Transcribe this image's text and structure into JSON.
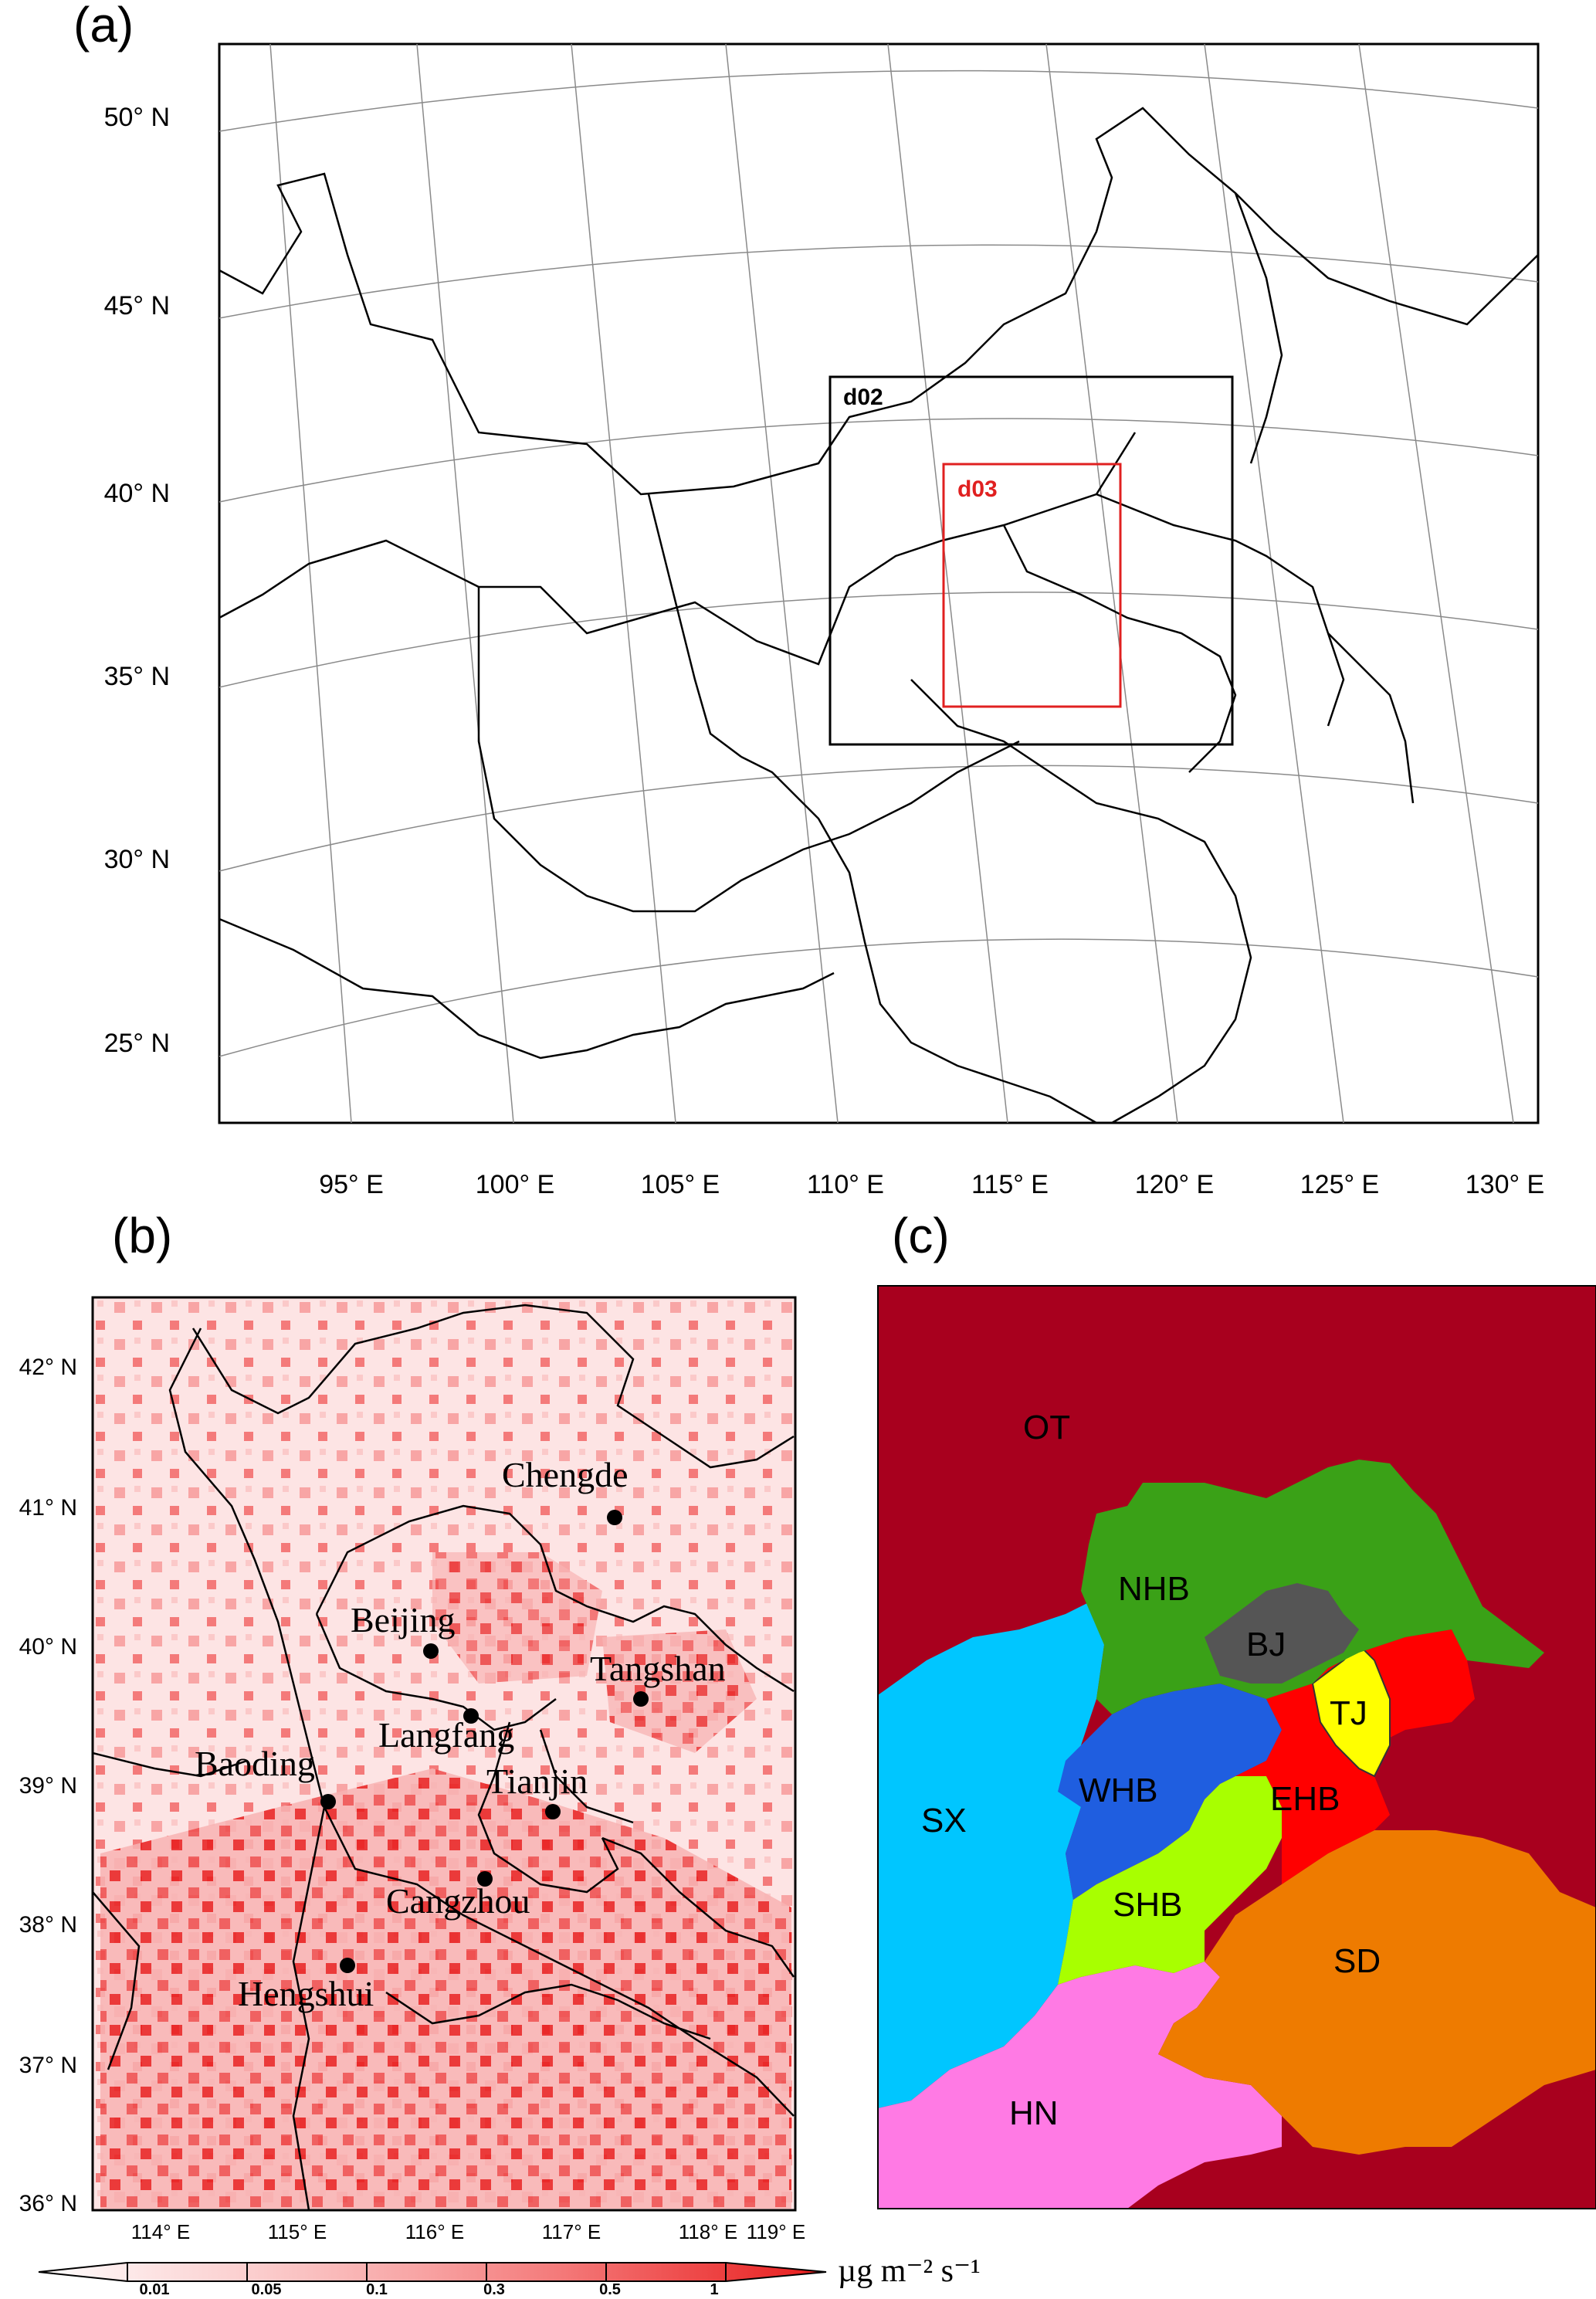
{
  "panels": {
    "a": {
      "label": "(a)",
      "lat_labels": [
        "50° N",
        "45° N",
        "40° N",
        "35° N",
        "30° N",
        "25° N"
      ],
      "lon_labels": [
        "95° E",
        "100° E",
        "105° E",
        "110° E",
        "115° E",
        "120° E",
        "125° E",
        "130° E"
      ],
      "domains": [
        {
          "name": "d02",
          "color": "#000000"
        },
        {
          "name": "d03",
          "color": "#e02020"
        }
      ]
    },
    "b": {
      "label": "(b)",
      "lat_labels": [
        "42° N",
        "41° N",
        "40° N",
        "39° N",
        "38° N",
        "37° N",
        "36° N"
      ],
      "lon_labels": [
        "114° E",
        "115° E",
        "116° E",
        "117° E",
        "118° E",
        "119° E"
      ],
      "cities": [
        "Chengde",
        "Beijing",
        "Tangshan",
        "Langfang",
        "Baoding",
        "Tianjin",
        "Cangzhou",
        "Hengshui"
      ],
      "colorbar": {
        "ticks": [
          "0.01",
          "0.05",
          "0.1",
          "0.3",
          "0.5",
          "1"
        ],
        "unit": "µg m⁻² s⁻¹",
        "colors": [
          "#ffffff",
          "#fde4e4",
          "#fbc9c9",
          "#f8a5a5",
          "#f47a7a",
          "#ee4a4a",
          "#e81c1c"
        ]
      }
    },
    "c": {
      "label": "(c)",
      "regions": [
        {
          "name": "OT",
          "color": "#a8001e"
        },
        {
          "name": "NHB",
          "color": "#3aa117"
        },
        {
          "name": "BJ",
          "color": "#555555"
        },
        {
          "name": "TJ",
          "color": "#ffff00"
        },
        {
          "name": "SX",
          "color": "#00c6ff"
        },
        {
          "name": "WHB",
          "color": "#1f5ee0"
        },
        {
          "name": "EHB",
          "color": "#ff0000"
        },
        {
          "name": "SHB",
          "color": "#a8ff00"
        },
        {
          "name": "SD",
          "color": "#ee7b00"
        },
        {
          "name": "HN",
          "color": "#ff7ae4"
        }
      ]
    }
  }
}
